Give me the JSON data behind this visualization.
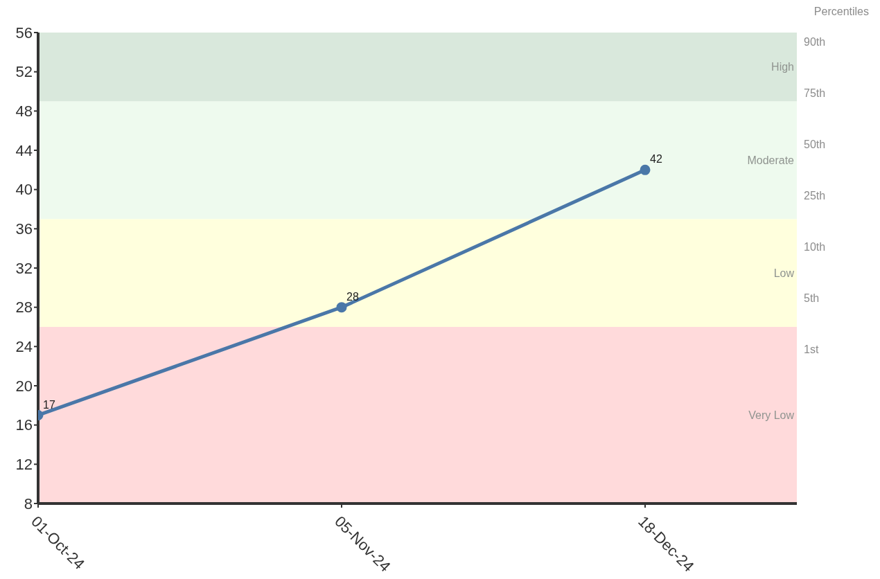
{
  "chart_data": {
    "type": "line",
    "categories": [
      "01-Oct-24",
      "05-Nov-24",
      "18-Dec-24"
    ],
    "series": [
      {
        "color": "#4a77a8",
        "values": [
          17,
          28,
          42
        ]
      }
    ],
    "ylim": [
      8,
      56
    ],
    "yticks": [
      8,
      12,
      16,
      20,
      24,
      28,
      32,
      36,
      40,
      44,
      48,
      52,
      56
    ],
    "annotations": [
      "Percentiles",
      "90th",
      "75th",
      "50th",
      "25th",
      "10th",
      "5th",
      "1st"
    ],
    "bands": [
      {
        "axis": "y",
        "from": 8,
        "to": 26,
        "label": "Very Low",
        "color": "#ffdadb"
      },
      {
        "axis": "y",
        "from": 26,
        "to": 37,
        "label": "Low",
        "color": "#ffffdd"
      },
      {
        "axis": "y",
        "from": 37,
        "to": 49,
        "label": "Moderate",
        "color": "#eefaee"
      },
      {
        "axis": "y",
        "from": 49,
        "to": 56,
        "label": "High",
        "color": "#d9e8dc"
      }
    ],
    "data_labels": true,
    "marker": "circle",
    "line_style": "solid",
    "grid": false,
    "legend": false
  }
}
